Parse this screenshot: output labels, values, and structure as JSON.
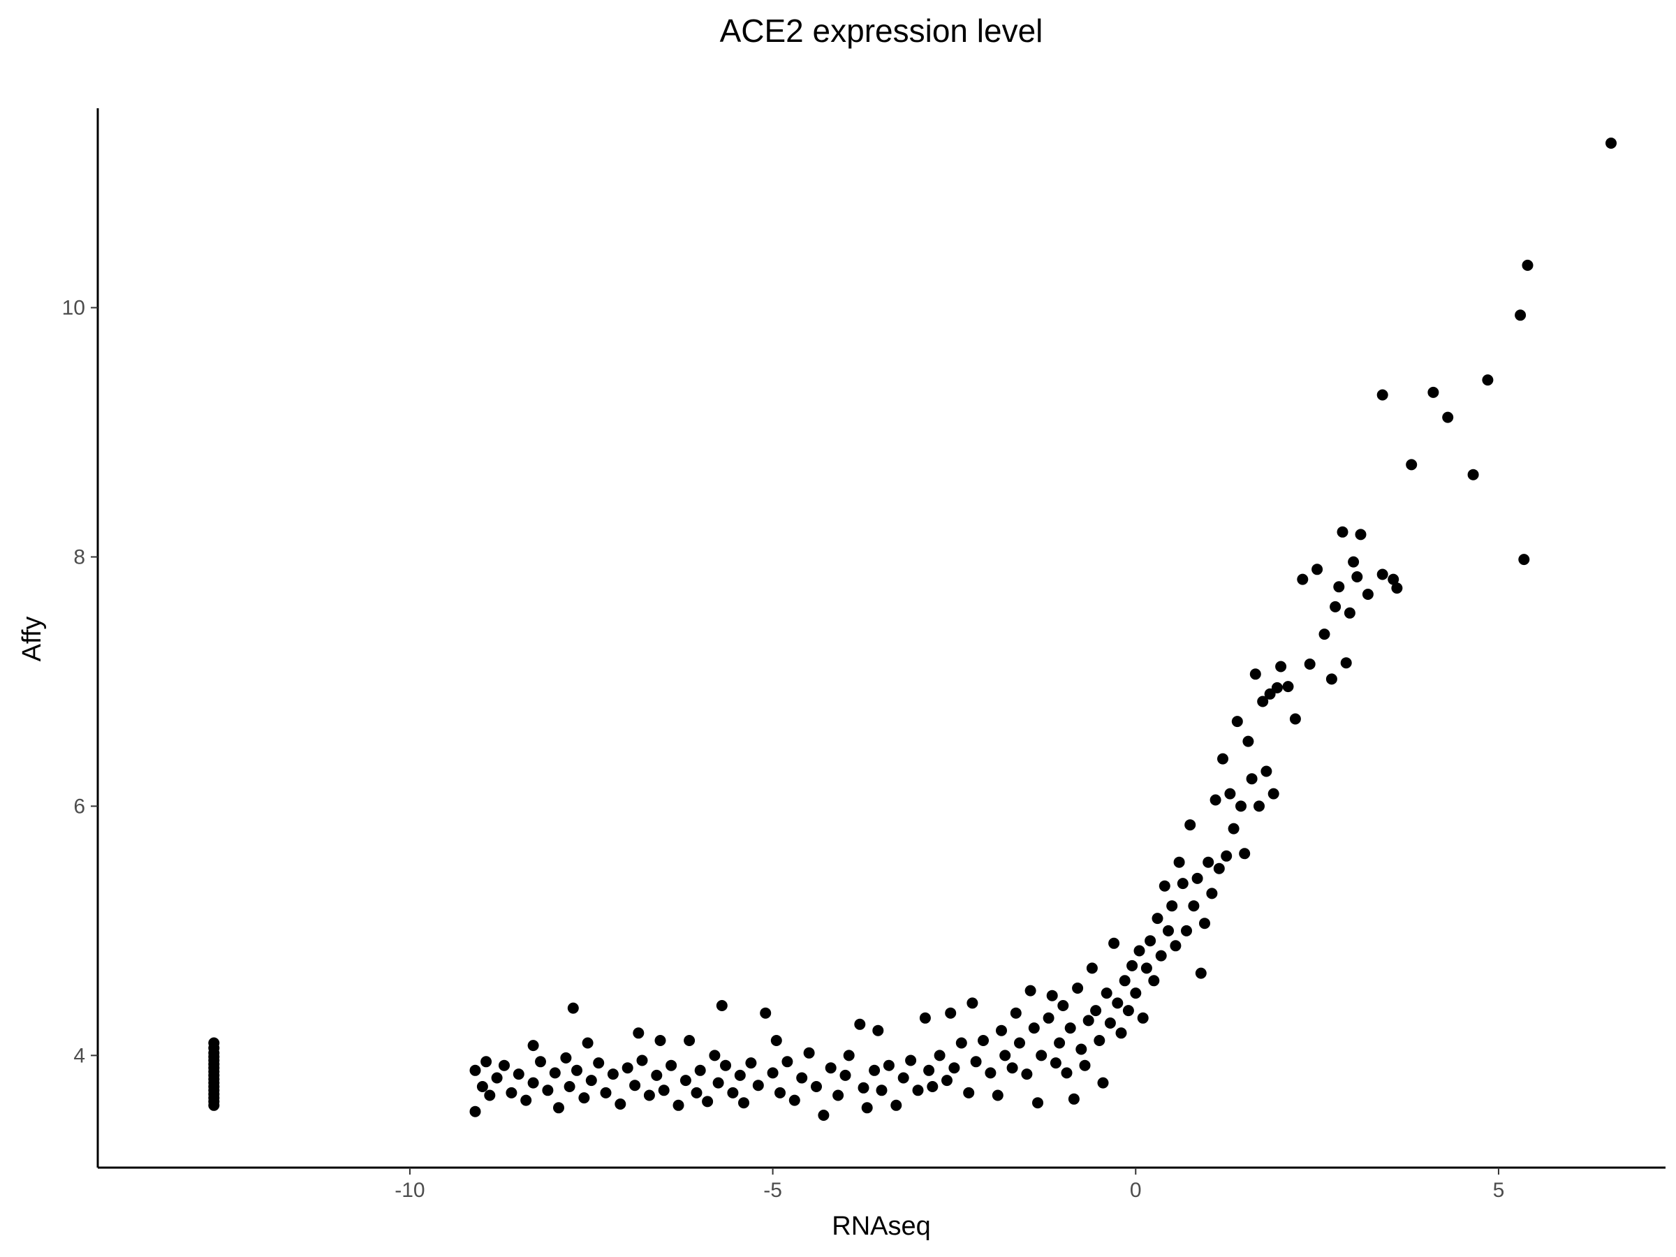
{
  "chart_data": {
    "type": "scatter",
    "title": "ACE2 expression level",
    "xlabel": "RNAseq",
    "ylabel": "Affy",
    "xlim": [
      -14.3,
      7.3
    ],
    "ylim": [
      3.1,
      11.6
    ],
    "xticks": [
      -10,
      -5,
      0,
      5
    ],
    "yticks": [
      4,
      6,
      8,
      10
    ],
    "xtick_labels": [
      "-10",
      "-5",
      "0",
      "5"
    ],
    "ytick_labels": [
      "4",
      "6",
      "8",
      "10"
    ],
    "grid": false,
    "legend": "none",
    "colors": {
      "point": "#000000",
      "axis": "#000000",
      "tick_label": "#4d4d4d",
      "background": "#ffffff"
    },
    "series": [
      {
        "points": [
          [
            -12.7,
            4.1
          ],
          [
            -12.7,
            4.06
          ],
          [
            -12.7,
            4.02
          ],
          [
            -12.7,
            3.99
          ],
          [
            -12.7,
            3.96
          ],
          [
            -12.7,
            3.93
          ],
          [
            -12.7,
            3.9
          ],
          [
            -12.7,
            3.87
          ],
          [
            -12.7,
            3.84
          ],
          [
            -12.7,
            3.81
          ],
          [
            -12.7,
            3.78
          ],
          [
            -12.7,
            3.75
          ],
          [
            -12.7,
            3.72
          ],
          [
            -12.7,
            3.69
          ],
          [
            -12.7,
            3.66
          ],
          [
            -12.7,
            3.63
          ],
          [
            -12.7,
            3.6
          ],
          [
            -9.1,
            3.55
          ],
          [
            -9.1,
            3.88
          ],
          [
            -9.0,
            3.75
          ],
          [
            -8.95,
            3.95
          ],
          [
            -8.9,
            3.68
          ],
          [
            -8.8,
            3.82
          ],
          [
            -8.7,
            3.92
          ],
          [
            -8.6,
            3.7
          ],
          [
            -8.5,
            3.85
          ],
          [
            -8.4,
            3.64
          ],
          [
            -8.3,
            3.78
          ],
          [
            -8.3,
            4.08
          ],
          [
            -8.2,
            3.95
          ],
          [
            -8.1,
            3.72
          ],
          [
            -8.0,
            3.86
          ],
          [
            -7.95,
            3.58
          ],
          [
            -7.85,
            3.98
          ],
          [
            -7.8,
            3.75
          ],
          [
            -7.75,
            4.38
          ],
          [
            -7.7,
            3.88
          ],
          [
            -7.6,
            3.66
          ],
          [
            -7.55,
            4.1
          ],
          [
            -7.5,
            3.8
          ],
          [
            -7.4,
            3.94
          ],
          [
            -7.3,
            3.7
          ],
          [
            -7.2,
            3.85
          ],
          [
            -7.1,
            3.61
          ],
          [
            -7.0,
            3.9
          ],
          [
            -6.9,
            3.76
          ],
          [
            -6.85,
            4.18
          ],
          [
            -6.8,
            3.96
          ],
          [
            -6.7,
            3.68
          ],
          [
            -6.6,
            3.84
          ],
          [
            -6.55,
            4.12
          ],
          [
            -6.5,
            3.72
          ],
          [
            -6.4,
            3.92
          ],
          [
            -6.3,
            3.6
          ],
          [
            -6.2,
            3.8
          ],
          [
            -6.15,
            4.12
          ],
          [
            -6.05,
            3.7
          ],
          [
            -6.0,
            3.88
          ],
          [
            -5.9,
            3.63
          ],
          [
            -5.8,
            4.0
          ],
          [
            -5.75,
            3.78
          ],
          [
            -5.7,
            4.4
          ],
          [
            -5.65,
            3.92
          ],
          [
            -5.55,
            3.7
          ],
          [
            -5.45,
            3.84
          ],
          [
            -5.4,
            3.62
          ],
          [
            -5.3,
            3.94
          ],
          [
            -5.2,
            3.76
          ],
          [
            -5.1,
            4.34
          ],
          [
            -5.0,
            3.86
          ],
          [
            -4.95,
            4.12
          ],
          [
            -4.9,
            3.7
          ],
          [
            -4.8,
            3.95
          ],
          [
            -4.7,
            3.64
          ],
          [
            -4.6,
            3.82
          ],
          [
            -4.5,
            4.02
          ],
          [
            -4.4,
            3.75
          ],
          [
            -4.3,
            3.52
          ],
          [
            -4.2,
            3.9
          ],
          [
            -4.1,
            3.68
          ],
          [
            -4.0,
            3.84
          ],
          [
            -3.95,
            4.0
          ],
          [
            -3.8,
            4.25
          ],
          [
            -3.75,
            3.74
          ],
          [
            -3.7,
            3.58
          ],
          [
            -3.6,
            3.88
          ],
          [
            -3.55,
            4.2
          ],
          [
            -3.5,
            3.72
          ],
          [
            -3.4,
            3.92
          ],
          [
            -3.3,
            3.6
          ],
          [
            -3.2,
            3.82
          ],
          [
            -3.1,
            3.96
          ],
          [
            -3.0,
            3.72
          ],
          [
            -2.9,
            4.3
          ],
          [
            -2.85,
            3.88
          ],
          [
            -2.8,
            3.75
          ],
          [
            -2.7,
            4.0
          ],
          [
            -2.6,
            3.8
          ],
          [
            -2.55,
            4.34
          ],
          [
            -2.5,
            3.9
          ],
          [
            -2.4,
            4.1
          ],
          [
            -2.3,
            3.7
          ],
          [
            -2.25,
            4.42
          ],
          [
            -2.2,
            3.95
          ],
          [
            -2.1,
            4.12
          ],
          [
            -2.0,
            3.86
          ],
          [
            -1.9,
            3.68
          ],
          [
            -1.85,
            4.2
          ],
          [
            -1.8,
            4.0
          ],
          [
            -1.7,
            3.9
          ],
          [
            -1.65,
            4.34
          ],
          [
            -1.6,
            4.1
          ],
          [
            -1.5,
            3.85
          ],
          [
            -1.45,
            4.52
          ],
          [
            -1.4,
            4.22
          ],
          [
            -1.35,
            3.62
          ],
          [
            -1.3,
            4.0
          ],
          [
            -1.2,
            4.3
          ],
          [
            -1.15,
            4.48
          ],
          [
            -1.1,
            3.94
          ],
          [
            -1.05,
            4.1
          ],
          [
            -1.0,
            4.4
          ],
          [
            -0.95,
            3.86
          ],
          [
            -0.9,
            4.22
          ],
          [
            -0.85,
            3.65
          ],
          [
            -0.8,
            4.54
          ],
          [
            -0.75,
            4.05
          ],
          [
            -0.7,
            3.92
          ],
          [
            -0.65,
            4.28
          ],
          [
            -0.6,
            4.7
          ],
          [
            -0.55,
            4.36
          ],
          [
            -0.5,
            4.12
          ],
          [
            -0.45,
            3.78
          ],
          [
            -0.4,
            4.5
          ],
          [
            -0.35,
            4.26
          ],
          [
            -0.3,
            4.9
          ],
          [
            -0.25,
            4.42
          ],
          [
            -0.2,
            4.18
          ],
          [
            -0.15,
            4.6
          ],
          [
            -0.1,
            4.36
          ],
          [
            -0.05,
            4.72
          ],
          [
            0.0,
            4.5
          ],
          [
            0.05,
            4.84
          ],
          [
            0.1,
            4.3
          ],
          [
            0.15,
            4.7
          ],
          [
            0.2,
            4.92
          ],
          [
            0.25,
            4.6
          ],
          [
            0.3,
            5.1
          ],
          [
            0.35,
            4.8
          ],
          [
            0.4,
            5.36
          ],
          [
            0.45,
            5.0
          ],
          [
            0.5,
            5.2
          ],
          [
            0.55,
            4.88
          ],
          [
            0.6,
            5.55
          ],
          [
            0.65,
            5.38
          ],
          [
            0.7,
            5.0
          ],
          [
            0.75,
            5.85
          ],
          [
            0.8,
            5.2
          ],
          [
            0.85,
            5.42
          ],
          [
            0.9,
            4.66
          ],
          [
            0.95,
            5.06
          ],
          [
            1.0,
            5.55
          ],
          [
            1.05,
            5.3
          ],
          [
            1.1,
            6.05
          ],
          [
            1.15,
            5.5
          ],
          [
            1.2,
            6.38
          ],
          [
            1.25,
            5.6
          ],
          [
            1.3,
            6.1
          ],
          [
            1.35,
            5.82
          ],
          [
            1.4,
            6.68
          ],
          [
            1.45,
            6.0
          ],
          [
            1.5,
            5.62
          ],
          [
            1.55,
            6.52
          ],
          [
            1.6,
            6.22
          ],
          [
            1.65,
            7.06
          ],
          [
            1.7,
            6.0
          ],
          [
            1.75,
            6.84
          ],
          [
            1.8,
            6.28
          ],
          [
            1.85,
            6.9
          ],
          [
            1.9,
            6.1
          ],
          [
            1.95,
            6.95
          ],
          [
            2.0,
            7.12
          ],
          [
            2.1,
            6.96
          ],
          [
            2.2,
            6.7
          ],
          [
            2.3,
            7.82
          ],
          [
            2.4,
            7.14
          ],
          [
            2.5,
            7.9
          ],
          [
            2.6,
            7.38
          ],
          [
            2.7,
            7.02
          ],
          [
            2.75,
            7.6
          ],
          [
            2.8,
            7.76
          ],
          [
            2.85,
            8.2
          ],
          [
            2.9,
            7.15
          ],
          [
            2.95,
            7.55
          ],
          [
            3.0,
            7.96
          ],
          [
            3.05,
            7.84
          ],
          [
            3.1,
            8.18
          ],
          [
            3.2,
            7.7
          ],
          [
            3.4,
            7.86
          ],
          [
            3.4,
            9.3
          ],
          [
            3.55,
            7.82
          ],
          [
            3.6,
            7.75
          ],
          [
            3.8,
            8.74
          ],
          [
            4.1,
            9.32
          ],
          [
            4.3,
            9.12
          ],
          [
            4.65,
            8.66
          ],
          [
            4.85,
            9.42
          ],
          [
            5.3,
            9.94
          ],
          [
            5.35,
            7.98
          ],
          [
            5.4,
            10.34
          ],
          [
            6.55,
            11.32
          ]
        ]
      }
    ]
  }
}
